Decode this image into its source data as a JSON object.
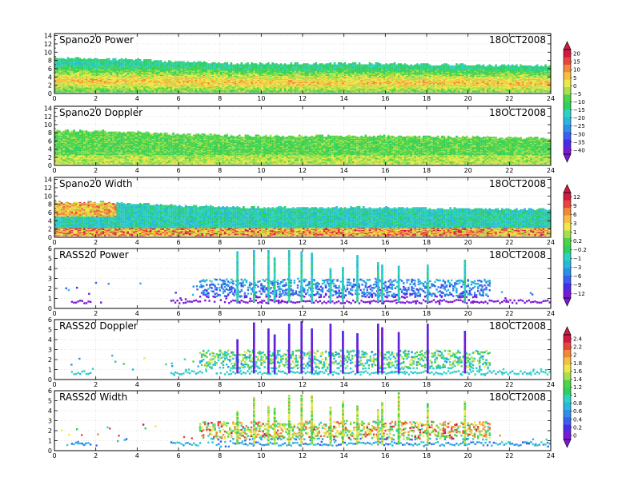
{
  "chart_data": [
    {
      "type": "heatmap",
      "title": "Spano20 Power",
      "date": "18OCT2008",
      "xlim": [
        0,
        24
      ],
      "ylim": [
        0,
        14.5
      ],
      "x_ticks": [
        0,
        2,
        4,
        6,
        8,
        10,
        12,
        14,
        16,
        18,
        20,
        22,
        24
      ],
      "y_ticks": [
        0,
        2,
        4,
        6,
        8,
        10,
        12,
        14
      ],
      "grid": true,
      "data_extent": {
        "x": [
          0,
          24
        ],
        "y": [
          0.3,
          8.5
        ]
      },
      "echo_top": {
        "x": [
          0,
          3,
          6,
          9,
          12,
          15,
          18,
          21,
          24
        ],
        "y": [
          8.5,
          8.3,
          7.6,
          7.2,
          7.1,
          7.2,
          7.0,
          6.8,
          6.6
        ]
      },
      "bright_band": {
        "x": [
          0,
          6,
          12,
          18,
          24
        ],
        "y": [
          3.0,
          2.8,
          2.5,
          2.6,
          2.3
        ]
      }
    },
    {
      "type": "heatmap",
      "title": "Spano20 Doppler",
      "date": "18OCT2008",
      "xlim": [
        0,
        24
      ],
      "ylim": [
        0,
        14.5
      ],
      "x_ticks": [
        0,
        2,
        4,
        6,
        8,
        10,
        12,
        14,
        16,
        18,
        20,
        22,
        24
      ],
      "y_ticks": [
        0,
        2,
        4,
        6,
        8,
        10,
        12,
        14
      ],
      "grid": true,
      "echo_top": {
        "x": [
          0,
          3,
          6,
          9,
          12,
          15,
          18,
          21,
          24
        ],
        "y": [
          8.5,
          8.3,
          7.6,
          7.2,
          7.1,
          7.2,
          7.0,
          6.8,
          6.6
        ]
      }
    },
    {
      "type": "heatmap",
      "title": "Spano20 Width",
      "date": "18OCT2008",
      "xlim": [
        0,
        24
      ],
      "ylim": [
        0,
        14.5
      ],
      "x_ticks": [
        0,
        2,
        4,
        6,
        8,
        10,
        12,
        14,
        16,
        18,
        20,
        22,
        24
      ],
      "y_ticks": [
        0,
        2,
        4,
        6,
        8,
        10,
        12,
        14
      ],
      "grid": true,
      "echo_top": {
        "x": [
          0,
          3,
          6,
          9,
          12,
          15,
          18,
          21,
          24
        ],
        "y": [
          8.5,
          8.3,
          7.6,
          7.2,
          7.1,
          7.2,
          7.0,
          6.8,
          6.6
        ]
      }
    },
    {
      "type": "scatter",
      "title": "RASS20 Power",
      "date": "18OCT2008",
      "xlim": [
        0,
        24
      ],
      "ylim": [
        0,
        6
      ],
      "x_ticks": [
        0,
        2,
        4,
        6,
        8,
        10,
        12,
        14,
        16,
        18,
        20,
        22,
        24
      ],
      "y_ticks": [
        0,
        1,
        2,
        3,
        4,
        5,
        6
      ],
      "grid": true,
      "dense_period": [
        7,
        21
      ],
      "spikes_x": [
        8.8,
        9.6,
        10.3,
        10.6,
        11.3,
        11.9,
        12.4,
        13.3,
        13.9,
        14.6,
        15.6,
        15.8,
        16.6,
        18.0,
        19.8
      ]
    },
    {
      "type": "scatter",
      "title": "RASS20 Doppler",
      "date": "18OCT2008",
      "xlim": [
        0,
        24
      ],
      "ylim": [
        0,
        6
      ],
      "x_ticks": [
        0,
        2,
        4,
        6,
        8,
        10,
        12,
        14,
        16,
        18,
        20,
        22,
        24
      ],
      "y_ticks": [
        0,
        1,
        2,
        3,
        4,
        5,
        6
      ],
      "grid": true,
      "dense_period": [
        7,
        21
      ],
      "spikes_x": [
        8.8,
        9.6,
        10.3,
        10.6,
        11.3,
        11.9,
        12.4,
        13.3,
        13.9,
        14.6,
        15.6,
        15.8,
        16.6,
        18.0,
        19.8
      ]
    },
    {
      "type": "scatter",
      "title": "RASS20 Width",
      "date": "18OCT2008",
      "xlim": [
        0,
        24
      ],
      "ylim": [
        0,
        6
      ],
      "x_ticks": [
        0,
        2,
        4,
        6,
        8,
        10,
        12,
        14,
        16,
        18,
        20,
        22,
        24
      ],
      "y_ticks": [
        0,
        1,
        2,
        3,
        4,
        5,
        6
      ],
      "grid": true,
      "dense_period": [
        7,
        21
      ],
      "spikes_x": [
        8.8,
        9.6,
        10.3,
        10.6,
        11.3,
        11.9,
        12.4,
        13.3,
        13.9,
        14.6,
        15.6,
        15.8,
        16.6,
        18.0,
        19.8
      ]
    }
  ],
  "colorbars": [
    {
      "for": "Spano20 Power / Spano20 Doppler",
      "labels": [
        "20",
        "15",
        "10",
        "5",
        "0",
        "−5",
        "−10",
        "−15",
        "−20",
        "−25",
        "−30",
        "−35",
        "−40"
      ]
    },
    {
      "for": "Spano20 Width / RASS20 Power",
      "labels": [
        "12",
        "9",
        "6",
        "3",
        "1",
        "0.2",
        "−0.2",
        "−1",
        "−3",
        "−6",
        "−9",
        "−12"
      ]
    },
    {
      "for": "RASS20 Doppler / RASS20 Width",
      "labels": [
        "2.4",
        "2.2",
        "2",
        "1.8",
        "1.6",
        "1.4",
        "1.2",
        "1",
        "0.8",
        "0.6",
        "0.4",
        "0.2",
        "0"
      ]
    }
  ],
  "palette": [
    "#7a18d6",
    "#4a2ce8",
    "#3a5ef0",
    "#2f8fe8",
    "#27b8e0",
    "#2ed2c2",
    "#2fd060",
    "#4ed44a",
    "#a6e04a",
    "#ece84a",
    "#f5c040",
    "#f08a3a",
    "#e8463c",
    "#d01a40"
  ]
}
